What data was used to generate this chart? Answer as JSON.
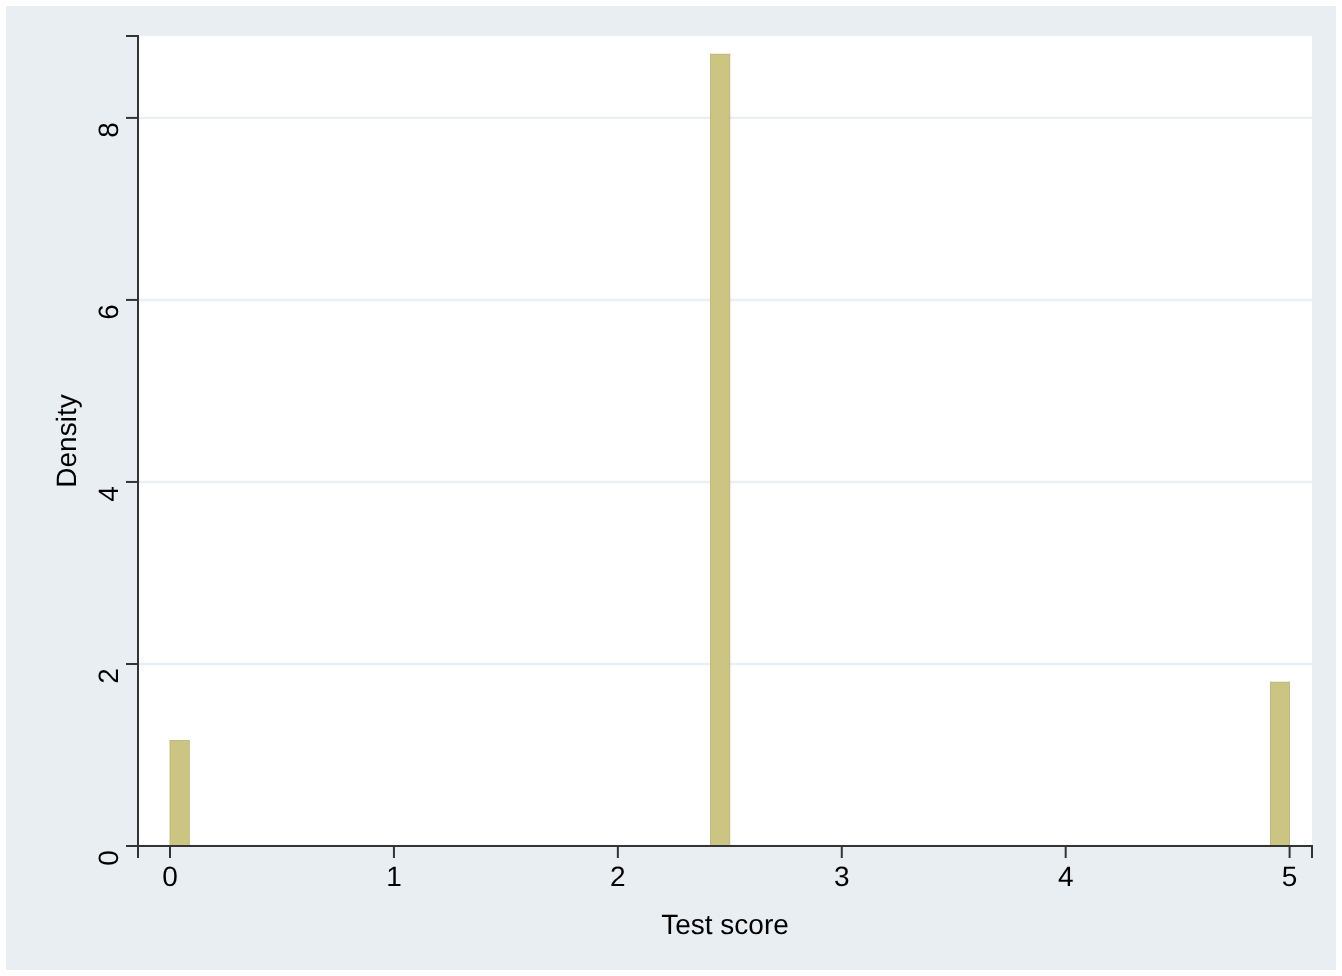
{
  "chart_data": {
    "type": "histogram",
    "xlabel": "Test score",
    "ylabel": "Density",
    "color": "#cbc483",
    "bins": [
      0,
      0.086,
      0.172,
      0.259,
      0.345,
      0.431,
      0.517,
      0.603,
      0.69,
      0.776,
      0.862,
      0.948,
      1.034,
      1.121,
      1.207,
      1.293,
      1.379,
      1.466,
      1.552,
      1.638,
      1.724,
      1.81,
      1.897,
      1.983,
      2.069,
      2.155,
      2.241,
      2.328,
      2.414,
      2.5,
      2.586,
      2.672,
      2.759,
      2.845,
      2.931,
      3.017,
      3.103,
      3.19,
      3.276,
      3.362,
      3.448,
      3.534,
      3.621,
      3.707,
      3.793,
      3.879,
      3.966,
      4.052,
      4.138,
      4.224,
      4.31,
      4.397,
      4.483,
      4.569,
      4.655,
      4.741,
      4.828,
      4.914,
      5
    ],
    "values": [
      1.16,
      0,
      0,
      0,
      0,
      0,
      0,
      0,
      0,
      0,
      0,
      0,
      0,
      0,
      0,
      0,
      0,
      0,
      0,
      0,
      0,
      0,
      0,
      0,
      0,
      0,
      0,
      0,
      8.7,
      0,
      0,
      0,
      0,
      0,
      0,
      0,
      0,
      0,
      0,
      0,
      0,
      0,
      0,
      0,
      0,
      0,
      0,
      0,
      0,
      0,
      0,
      0,
      0,
      0,
      0,
      0,
      0,
      1.8
    ],
    "xlim": [
      -0.143,
      5.1
    ],
    "ylim": [
      0,
      8.9
    ],
    "xticks": [
      0,
      1,
      2,
      3,
      4,
      5
    ],
    "yticks": [
      0,
      2,
      4,
      6,
      8
    ],
    "grid": "y"
  }
}
